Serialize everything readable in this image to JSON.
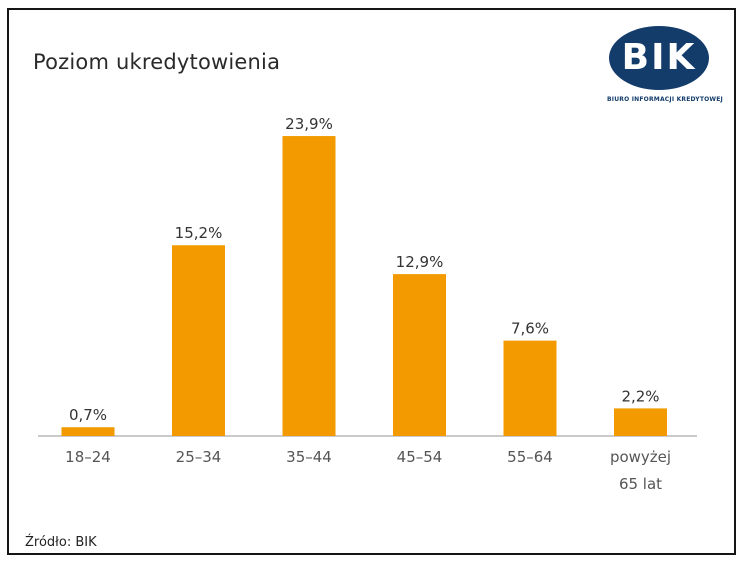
{
  "title": "Poziom ukredytowienia",
  "logo": {
    "text": "BIK",
    "subtitle": "BIURO INFORMACJI KREDYTOWEJ",
    "color": "#143c6b"
  },
  "source": "Źródło: BIK",
  "chart_data": {
    "type": "bar",
    "categories": [
      "18–24",
      "25–34",
      "35–44",
      "45–54",
      "55–64",
      "powyżej 65 lat"
    ],
    "category_lines": [
      [
        "18–24"
      ],
      [
        "25–34"
      ],
      [
        "35–44"
      ],
      [
        "45–54"
      ],
      [
        "55–64"
      ],
      [
        "powyżej",
        "65 lat"
      ]
    ],
    "values": [
      0.7,
      15.2,
      23.9,
      12.9,
      7.6,
      2.2
    ],
    "value_labels": [
      "0,7%",
      "15,2%",
      "23,9%",
      "12,9%",
      "7,6%",
      "2,2%"
    ],
    "title": "Poziom ukredytowienia",
    "xlabel": "",
    "ylabel": "",
    "ylim": [
      0,
      25
    ],
    "grid": false,
    "bar_color": "#f29a00",
    "axis_color": "#b8b8b8"
  }
}
